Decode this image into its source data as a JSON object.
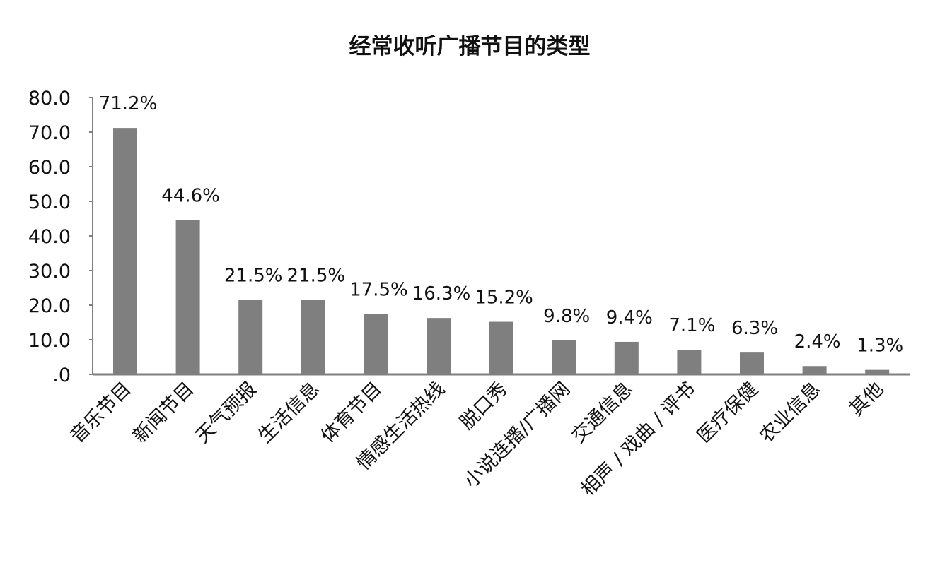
{
  "chart_data": {
    "type": "bar",
    "title": "经常收听广播节目的类型",
    "categories": [
      "音乐节目",
      "新闻节目",
      "天气预报",
      "生活信息",
      "体育节目",
      "情感生活热线",
      "脱口秀",
      "小说连播/广播网",
      "交通信息",
      "相声 / 戏曲 / 评书",
      "医疗保健",
      "农业信息",
      "其他"
    ],
    "values": [
      71.2,
      44.6,
      21.5,
      21.5,
      17.5,
      16.3,
      15.2,
      9.8,
      9.4,
      7.1,
      6.3,
      2.4,
      1.3
    ],
    "data_labels": [
      "71.2%",
      "44.6%",
      "21.5%",
      "21.5%",
      "17.5%",
      "16.3%",
      "15.2%",
      "9.8%",
      "9.4%",
      "7.1%",
      "6.3%",
      "2.4%",
      "1.3%"
    ],
    "ylim": [
      0,
      80
    ],
    "yticks": [
      ".0",
      "10.0",
      "20.0",
      "30.0",
      "40.0",
      "50.0",
      "60.0",
      "70.0",
      "80.0"
    ],
    "grid": false,
    "bar_color": "#7f7f7f"
  }
}
